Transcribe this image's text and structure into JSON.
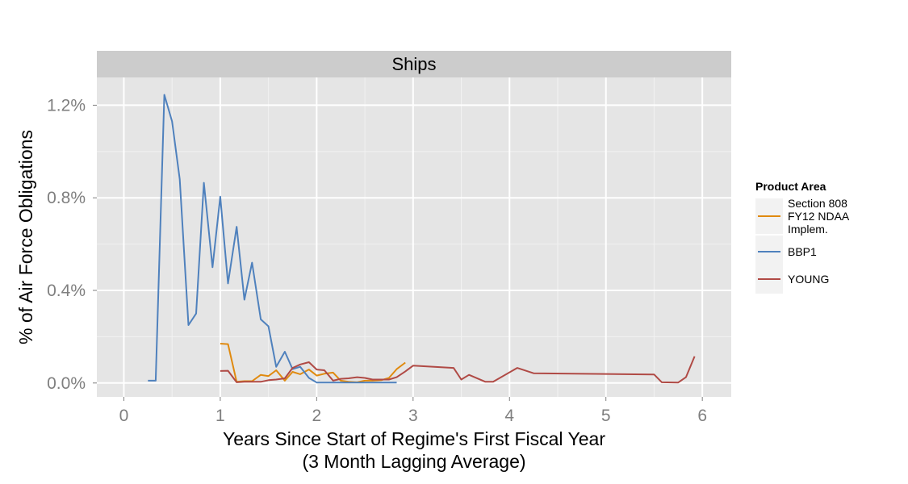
{
  "chart_data": {
    "type": "line",
    "facet_title": "Ships",
    "xlabel_line1": "Years Since Start of Regime's First Fiscal Year",
    "xlabel_line2": "(3 Month Lagging Average)",
    "ylabel": "% of Air Force Obligations",
    "xlim": [
      -0.28,
      6.3
    ],
    "ylim": [
      -0.06,
      1.32
    ],
    "x_ticks": [
      0,
      1,
      2,
      3,
      4,
      5,
      6
    ],
    "x_tick_labels": [
      "0",
      "1",
      "2",
      "3",
      "4",
      "5",
      "6"
    ],
    "y_ticks": [
      0.0,
      0.4,
      0.8,
      1.2
    ],
    "y_tick_labels": [
      "0.0%",
      "0.4%",
      "0.8%",
      "1.2%"
    ],
    "grid": true,
    "legend_position": "right",
    "legend_title": "Product Area",
    "series": [
      {
        "name": "Section 808 FY12 NDAA Implem.",
        "legend_lines": [
          "Section 808",
          "FY12 NDAA",
          "Implem."
        ],
        "color": "#e08a0f",
        "x": [
          1.0,
          1.08,
          1.17,
          1.25,
          1.33,
          1.42,
          1.5,
          1.58,
          1.67,
          1.75,
          1.83,
          1.92,
          2.0,
          2.08,
          2.17,
          2.25,
          2.33,
          2.42,
          2.5,
          2.58,
          2.67,
          2.75,
          2.83,
          2.92
        ],
        "y": [
          0.17,
          0.168,
          0.005,
          0.008,
          0.008,
          0.035,
          0.03,
          0.055,
          0.01,
          0.048,
          0.038,
          0.058,
          0.032,
          0.04,
          0.045,
          0.01,
          0.005,
          0.003,
          0.01,
          0.01,
          0.012,
          0.022,
          0.06,
          0.088
        ]
      },
      {
        "name": "BBP1",
        "legend_lines": [
          "BBP1"
        ],
        "color": "#4f81bd",
        "x": [
          0.25,
          0.33,
          0.42,
          0.5,
          0.58,
          0.67,
          0.75,
          0.83,
          0.92,
          1.0,
          1.08,
          1.17,
          1.25,
          1.33,
          1.42,
          1.5,
          1.58,
          1.67,
          1.75,
          1.83,
          1.92,
          2.0,
          2.08,
          2.17,
          2.25,
          2.33,
          2.42,
          2.5,
          2.58,
          2.67,
          2.75,
          2.83
        ],
        "y": [
          0.01,
          0.01,
          1.245,
          1.13,
          0.88,
          0.25,
          0.3,
          0.865,
          0.5,
          0.805,
          0.43,
          0.675,
          0.36,
          0.52,
          0.275,
          0.245,
          0.07,
          0.135,
          0.06,
          0.07,
          0.022,
          0.002,
          0.002,
          0.002,
          0.002,
          0.002,
          0.002,
          0.002,
          0.002,
          0.002,
          0.002,
          0.002
        ]
      },
      {
        "name": "YOUNG",
        "legend_lines": [
          "YOUNG"
        ],
        "color": "#b04a45",
        "x": [
          1.0,
          1.08,
          1.17,
          1.25,
          1.33,
          1.42,
          1.5,
          1.58,
          1.67,
          1.75,
          1.83,
          1.92,
          2.0,
          2.08,
          2.17,
          2.25,
          2.33,
          2.42,
          2.5,
          2.58,
          2.67,
          2.75,
          2.83,
          2.92,
          3.0,
          3.42,
          3.5,
          3.58,
          3.75,
          3.83,
          4.08,
          4.25,
          5.5,
          5.58,
          5.75,
          5.83,
          5.92
        ],
        "y": [
          0.052,
          0.053,
          0.003,
          0.005,
          0.005,
          0.005,
          0.012,
          0.015,
          0.02,
          0.065,
          0.08,
          0.09,
          0.058,
          0.055,
          0.01,
          0.018,
          0.02,
          0.025,
          0.022,
          0.015,
          0.015,
          0.015,
          0.025,
          0.05,
          0.075,
          0.065,
          0.015,
          0.035,
          0.005,
          0.005,
          0.065,
          0.042,
          0.037,
          0.003,
          0.002,
          0.025,
          0.115
        ]
      }
    ]
  }
}
